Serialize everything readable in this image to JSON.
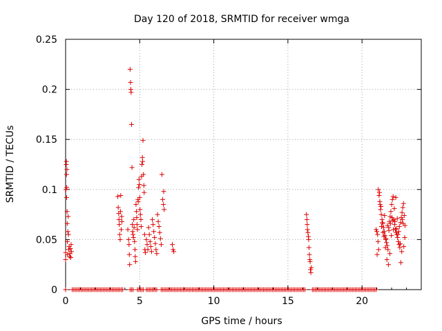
{
  "chart_data": {
    "type": "scatter",
    "title": "Day 120 of 2018, SRMTID for receiver wmga",
    "xlabel": "GPS time / hours",
    "ylabel": "SRMTID / TECUs",
    "xlim": [
      0,
      24
    ],
    "ylim": [
      0,
      0.25
    ],
    "xticks": [
      0,
      5,
      10,
      15,
      20
    ],
    "yticks": [
      0,
      0.05,
      0.1,
      0.15,
      0.2,
      0.25
    ],
    "xtick_labels": [
      "0",
      "5",
      "10",
      "15",
      "20"
    ],
    "ytick_labels": [
      "0",
      "0.05",
      "0.1",
      "0.15",
      "0.2",
      "0.25"
    ],
    "grid": true,
    "marker": "+",
    "color": "#dd0000",
    "series": [
      {
        "name": "SRMTID",
        "x": [
          0.0,
          0.0,
          0.02,
          0.04,
          0.05,
          0.06,
          0.07,
          0.08,
          0.09,
          0.1,
          0.11,
          0.12,
          0.13,
          0.15,
          0.17,
          0.19,
          0.21,
          0.24,
          0.27,
          0.3,
          0.32,
          0.35,
          0.37,
          0.4,
          3.52,
          3.55,
          3.58,
          3.6,
          3.62,
          3.65,
          3.68,
          3.7,
          3.72,
          3.75,
          3.78,
          3.8,
          4.2,
          4.25,
          4.28,
          4.3,
          4.32,
          4.35,
          4.38,
          4.4,
          4.42,
          4.45,
          4.48,
          4.5,
          4.52,
          4.55,
          4.58,
          4.6,
          4.62,
          4.65,
          4.68,
          4.7,
          4.72,
          4.75,
          4.78,
          4.8,
          4.82,
          4.85,
          4.88,
          4.9,
          4.92,
          4.95,
          4.98,
          5.0,
          5.02,
          5.05,
          5.08,
          5.1,
          5.12,
          5.15,
          5.18,
          5.2,
          5.22,
          5.25,
          5.28,
          5.3,
          5.33,
          5.35,
          5.38,
          5.45,
          5.5,
          5.55,
          5.6,
          5.65,
          5.7,
          5.75,
          5.8,
          5.85,
          5.9,
          5.95,
          6.0,
          6.05,
          6.1,
          6.15,
          6.2,
          6.25,
          6.3,
          6.35,
          6.4,
          6.45,
          6.5,
          6.55,
          6.6,
          6.62,
          6.65,
          7.2,
          7.25,
          7.3,
          16.25,
          16.28,
          16.3,
          16.32,
          16.35,
          16.38,
          16.4,
          16.42,
          16.45,
          16.48,
          16.5,
          16.52,
          16.55,
          16.58,
          20.95,
          21.0,
          21.05,
          21.1,
          21.15,
          21.2,
          21.25,
          21.3,
          21.35,
          21.4,
          21.45,
          21.5,
          21.55,
          21.6,
          21.65,
          21.7,
          21.75,
          21.8,
          21.85,
          21.9,
          21.95,
          22.0,
          22.05,
          22.1,
          22.15,
          22.2,
          22.25,
          22.3,
          22.35,
          22.4,
          22.45,
          22.5,
          22.55,
          22.6,
          22.65,
          22.7,
          22.75,
          22.8,
          22.85,
          22.9,
          21.02,
          21.08,
          21.18,
          21.28,
          21.38,
          21.48,
          21.58,
          21.68,
          21.78,
          21.88,
          21.98,
          22.08,
          22.18,
          22.28,
          22.38,
          22.48,
          22.58,
          22.68,
          22.78,
          22.88,
          21.12,
          21.22,
          21.32,
          21.42,
          21.52,
          21.62,
          21.72,
          21.82,
          21.92,
          22.02,
          22.12,
          22.22,
          22.32,
          22.42,
          22.52,
          22.62,
          22.72,
          22.82
        ],
        "y": [
          0.03,
          0.037,
          0.1,
          0.125,
          0.128,
          0.115,
          0.092,
          0.102,
          0.12,
          0.078,
          0.066,
          0.048,
          0.035,
          0.058,
          0.073,
          0.055,
          0.04,
          0.043,
          0.033,
          0.036,
          0.041,
          0.032,
          0.045,
          0.038,
          0.093,
          0.082,
          0.076,
          0.07,
          0.065,
          0.055,
          0.05,
          0.078,
          0.094,
          0.06,
          0.073,
          0.068,
          0.06,
          0.05,
          0.045,
          0.035,
          0.025,
          0.22,
          0.207,
          0.2,
          0.197,
          0.165,
          0.122,
          0.065,
          0.058,
          0.055,
          0.052,
          0.07,
          0.062,
          0.048,
          0.04,
          0.033,
          0.028,
          0.085,
          0.078,
          0.072,
          0.065,
          0.06,
          0.09,
          0.088,
          0.102,
          0.11,
          0.105,
          0.092,
          0.08,
          0.075,
          0.07,
          0.063,
          0.113,
          0.125,
          0.132,
          0.128,
          0.149,
          0.115,
          0.104,
          0.097,
          0.055,
          0.04,
          0.037,
          0.05,
          0.045,
          0.04,
          0.062,
          0.055,
          0.048,
          0.043,
          0.038,
          0.07,
          0.065,
          0.058,
          0.052,
          0.046,
          0.04,
          0.036,
          0.075,
          0.068,
          0.063,
          0.057,
          0.051,
          0.045,
          0.115,
          0.09,
          0.085,
          0.098,
          0.08,
          0.045,
          0.04,
          0.038,
          0.075,
          0.07,
          0.065,
          0.06,
          0.057,
          0.053,
          0.05,
          0.042,
          0.035,
          0.03,
          0.028,
          0.02,
          0.017,
          0.022,
          0.06,
          0.058,
          0.055,
          0.1,
          0.094,
          0.088,
          0.08,
          0.075,
          0.07,
          0.066,
          0.062,
          0.058,
          0.054,
          0.05,
          0.047,
          0.044,
          0.04,
          0.062,
          0.068,
          0.073,
          0.078,
          0.085,
          0.09,
          0.093,
          0.07,
          0.065,
          0.06,
          0.057,
          0.055,
          0.052,
          0.048,
          0.045,
          0.042,
          0.067,
          0.072,
          0.077,
          0.082,
          0.086,
          0.074,
          0.064,
          0.035,
          0.048,
          0.097,
          0.083,
          0.067,
          0.053,
          0.042,
          0.03,
          0.025,
          0.036,
          0.054,
          0.069,
          0.081,
          0.092,
          0.071,
          0.058,
          0.046,
          0.038,
          0.066,
          0.052,
          0.04,
          0.085,
          0.063,
          0.057,
          0.074,
          0.051,
          0.064,
          0.059,
          0.066,
          0.072,
          0.06,
          0.068,
          0.061,
          0.055,
          0.063,
          0.027,
          0.07,
          0.043
        ],
        "zero_x_start": 0.45,
        "zero_x_end": 20.95,
        "zero_x_step": 0.1,
        "zero_extra_x": [
          0.0
        ]
      }
    ]
  }
}
